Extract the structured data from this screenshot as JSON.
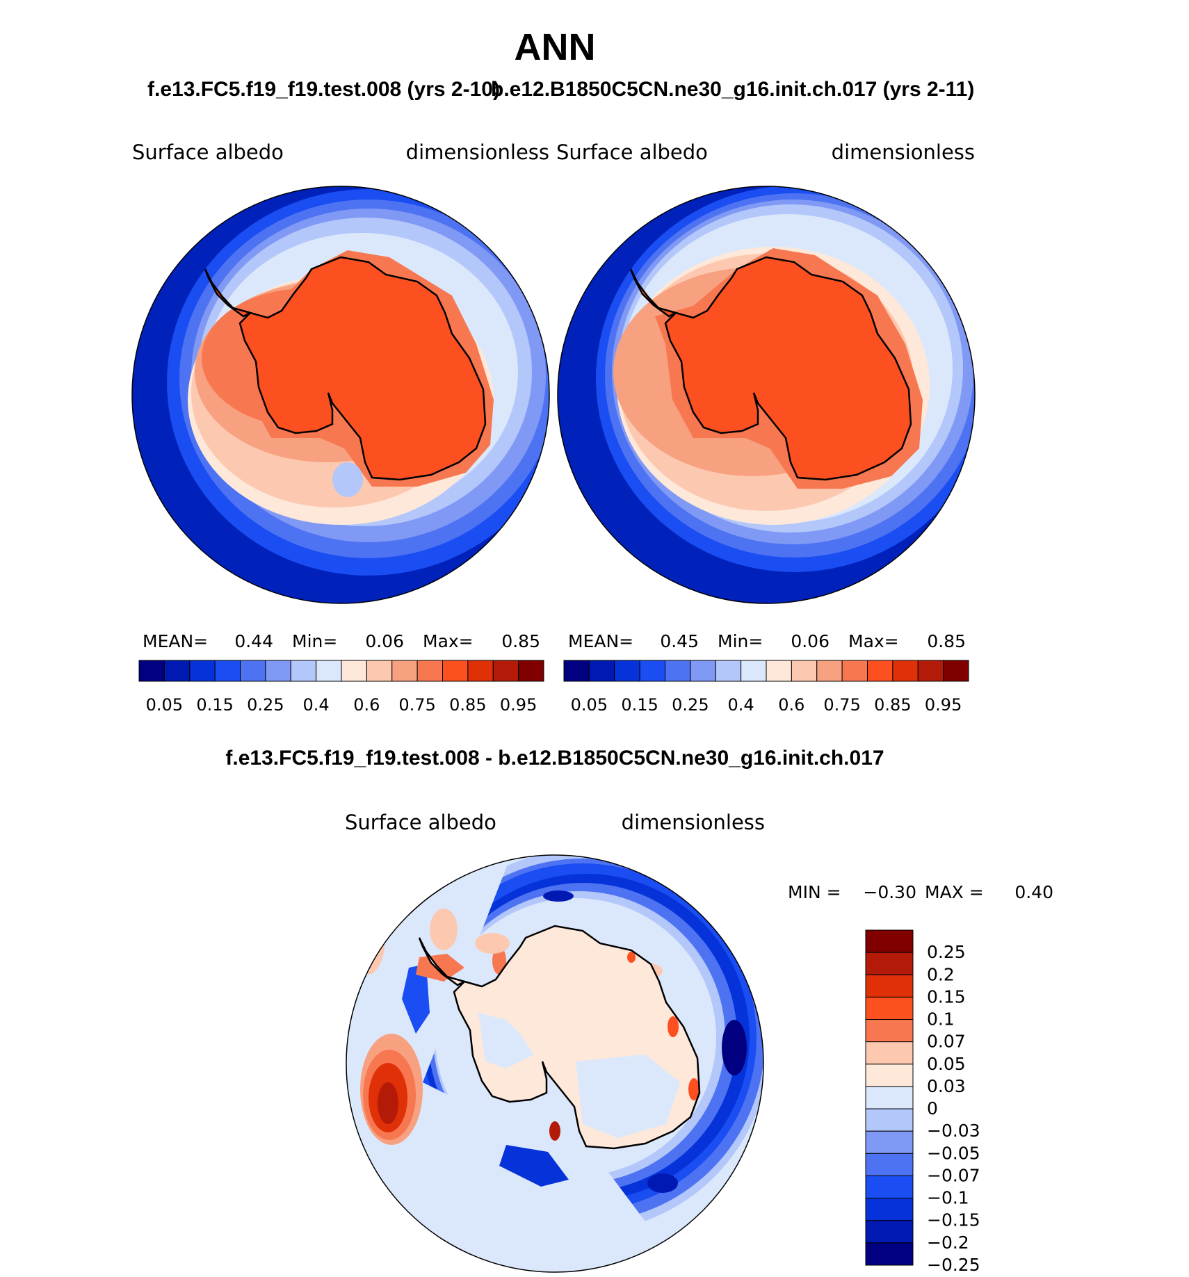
{
  "page_title": "ANN",
  "left_panel": {
    "title": "f.e13.FC5.f19_f19.test.008 (yrs 2-10)",
    "variable": "Surface  albedo",
    "units": "dimensionless",
    "stats": {
      "mean_label": "MEAN=",
      "mean": "0.44",
      "min_label": "Min=",
      "min": "0.06",
      "max_label": "Max=",
      "max": "0.85"
    }
  },
  "right_panel": {
    "title": "b.e12.B1850C5CN.ne30_g16.init.ch.017 (yrs 2-11)",
    "variable": "Surface  albedo",
    "units": "dimensionless",
    "stats": {
      "mean_label": "MEAN=",
      "mean": "0.45",
      "min_label": "Min=",
      "min": "0.06",
      "max_label": "Max=",
      "max": "0.85"
    }
  },
  "top_colorbar": {
    "colors": [
      "#000080",
      "#0019b3",
      "#0533d9",
      "#1a4df2",
      "#4d73f2",
      "#8099f5",
      "#b3c7fa",
      "#dbe8fc",
      "#fde8da",
      "#fcc9b0",
      "#f7a180",
      "#f77850",
      "#fc5021",
      "#e03008",
      "#b31a08",
      "#800000"
    ],
    "labels": [
      "0.05",
      "0.15",
      "0.25",
      "0.4",
      "0.6",
      "0.75",
      "0.85",
      "0.95"
    ]
  },
  "diff_panel": {
    "title": "f.e13.FC5.f19_f19.test.008 - b.e12.B1850C5CN.ne30_g16.init.ch.017",
    "variable": "Surface  albedo",
    "units": "dimensionless",
    "stats": {
      "min_label": "MIN =",
      "min": "−0.30",
      "max_label": "MAX =",
      "max": "0.40"
    }
  },
  "diff_colorbar": {
    "colors": [
      "#800000",
      "#b31a08",
      "#e03008",
      "#fc5021",
      "#f77850",
      "#fcc9b0",
      "#fde8da",
      "#dbe8fc",
      "#b3c7fa",
      "#8099f5",
      "#4d73f2",
      "#1a4df2",
      "#0533d9",
      "#0019b3",
      "#000080"
    ],
    "labels": [
      "0.25",
      "0.2",
      "0.15",
      "0.1",
      "0.07",
      "0.05",
      "0.03",
      "0",
      "−0.03",
      "−0.05",
      "−0.07",
      "−0.1",
      "−0.15",
      "−0.2",
      "−0.25"
    ]
  },
  "colors": {
    "land": "#fc5021",
    "ocean": "#0022bb",
    "coast": "#000000"
  }
}
